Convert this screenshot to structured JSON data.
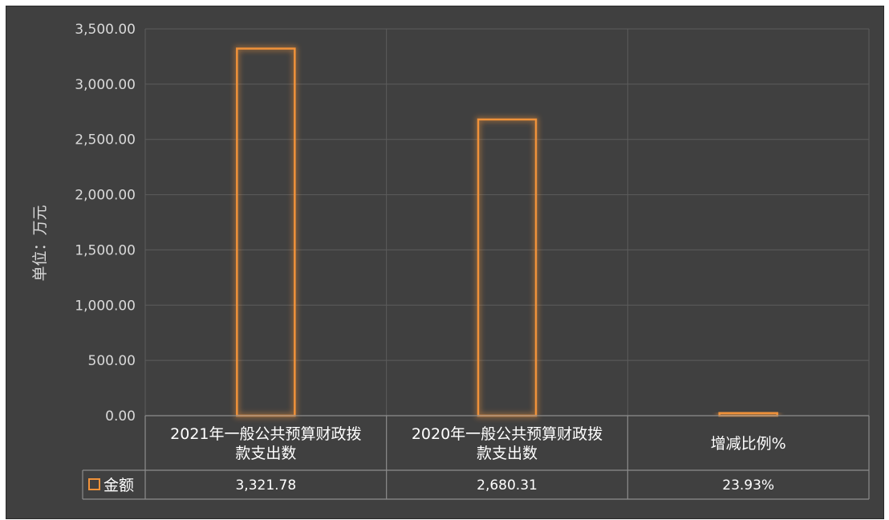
{
  "chart_data": {
    "type": "bar",
    "ylabel": "单位：万元",
    "ylim": [
      0,
      3500
    ],
    "yticks": [
      "0.00",
      "500.00",
      "1,000.00",
      "1,500.00",
      "2,000.00",
      "2,500.00",
      "3,000.00",
      "3,500.00"
    ],
    "categories": [
      "2021年一般公共预算财政拨款支出数",
      "2020年一般公共预算财政拨款支出数",
      "增减比例%"
    ],
    "category_lines": [
      [
        "2021年一般公共预算财政拨",
        "款支出数"
      ],
      [
        "2020年一般公共预算财政拨",
        "款支出数"
      ],
      [
        "增减比例%"
      ]
    ],
    "series": [
      {
        "name": "金额",
        "values": [
          3321.78,
          2680.31,
          23.93
        ],
        "labels": [
          "3,321.78",
          "2,680.31",
          "23.93%"
        ]
      }
    ],
    "legend_position": "data-table",
    "grid": true,
    "colors": {
      "bar": "#f0923a",
      "background": "#404040",
      "grid": "#5c5c5c",
      "table": "#8c8c8c"
    }
  }
}
